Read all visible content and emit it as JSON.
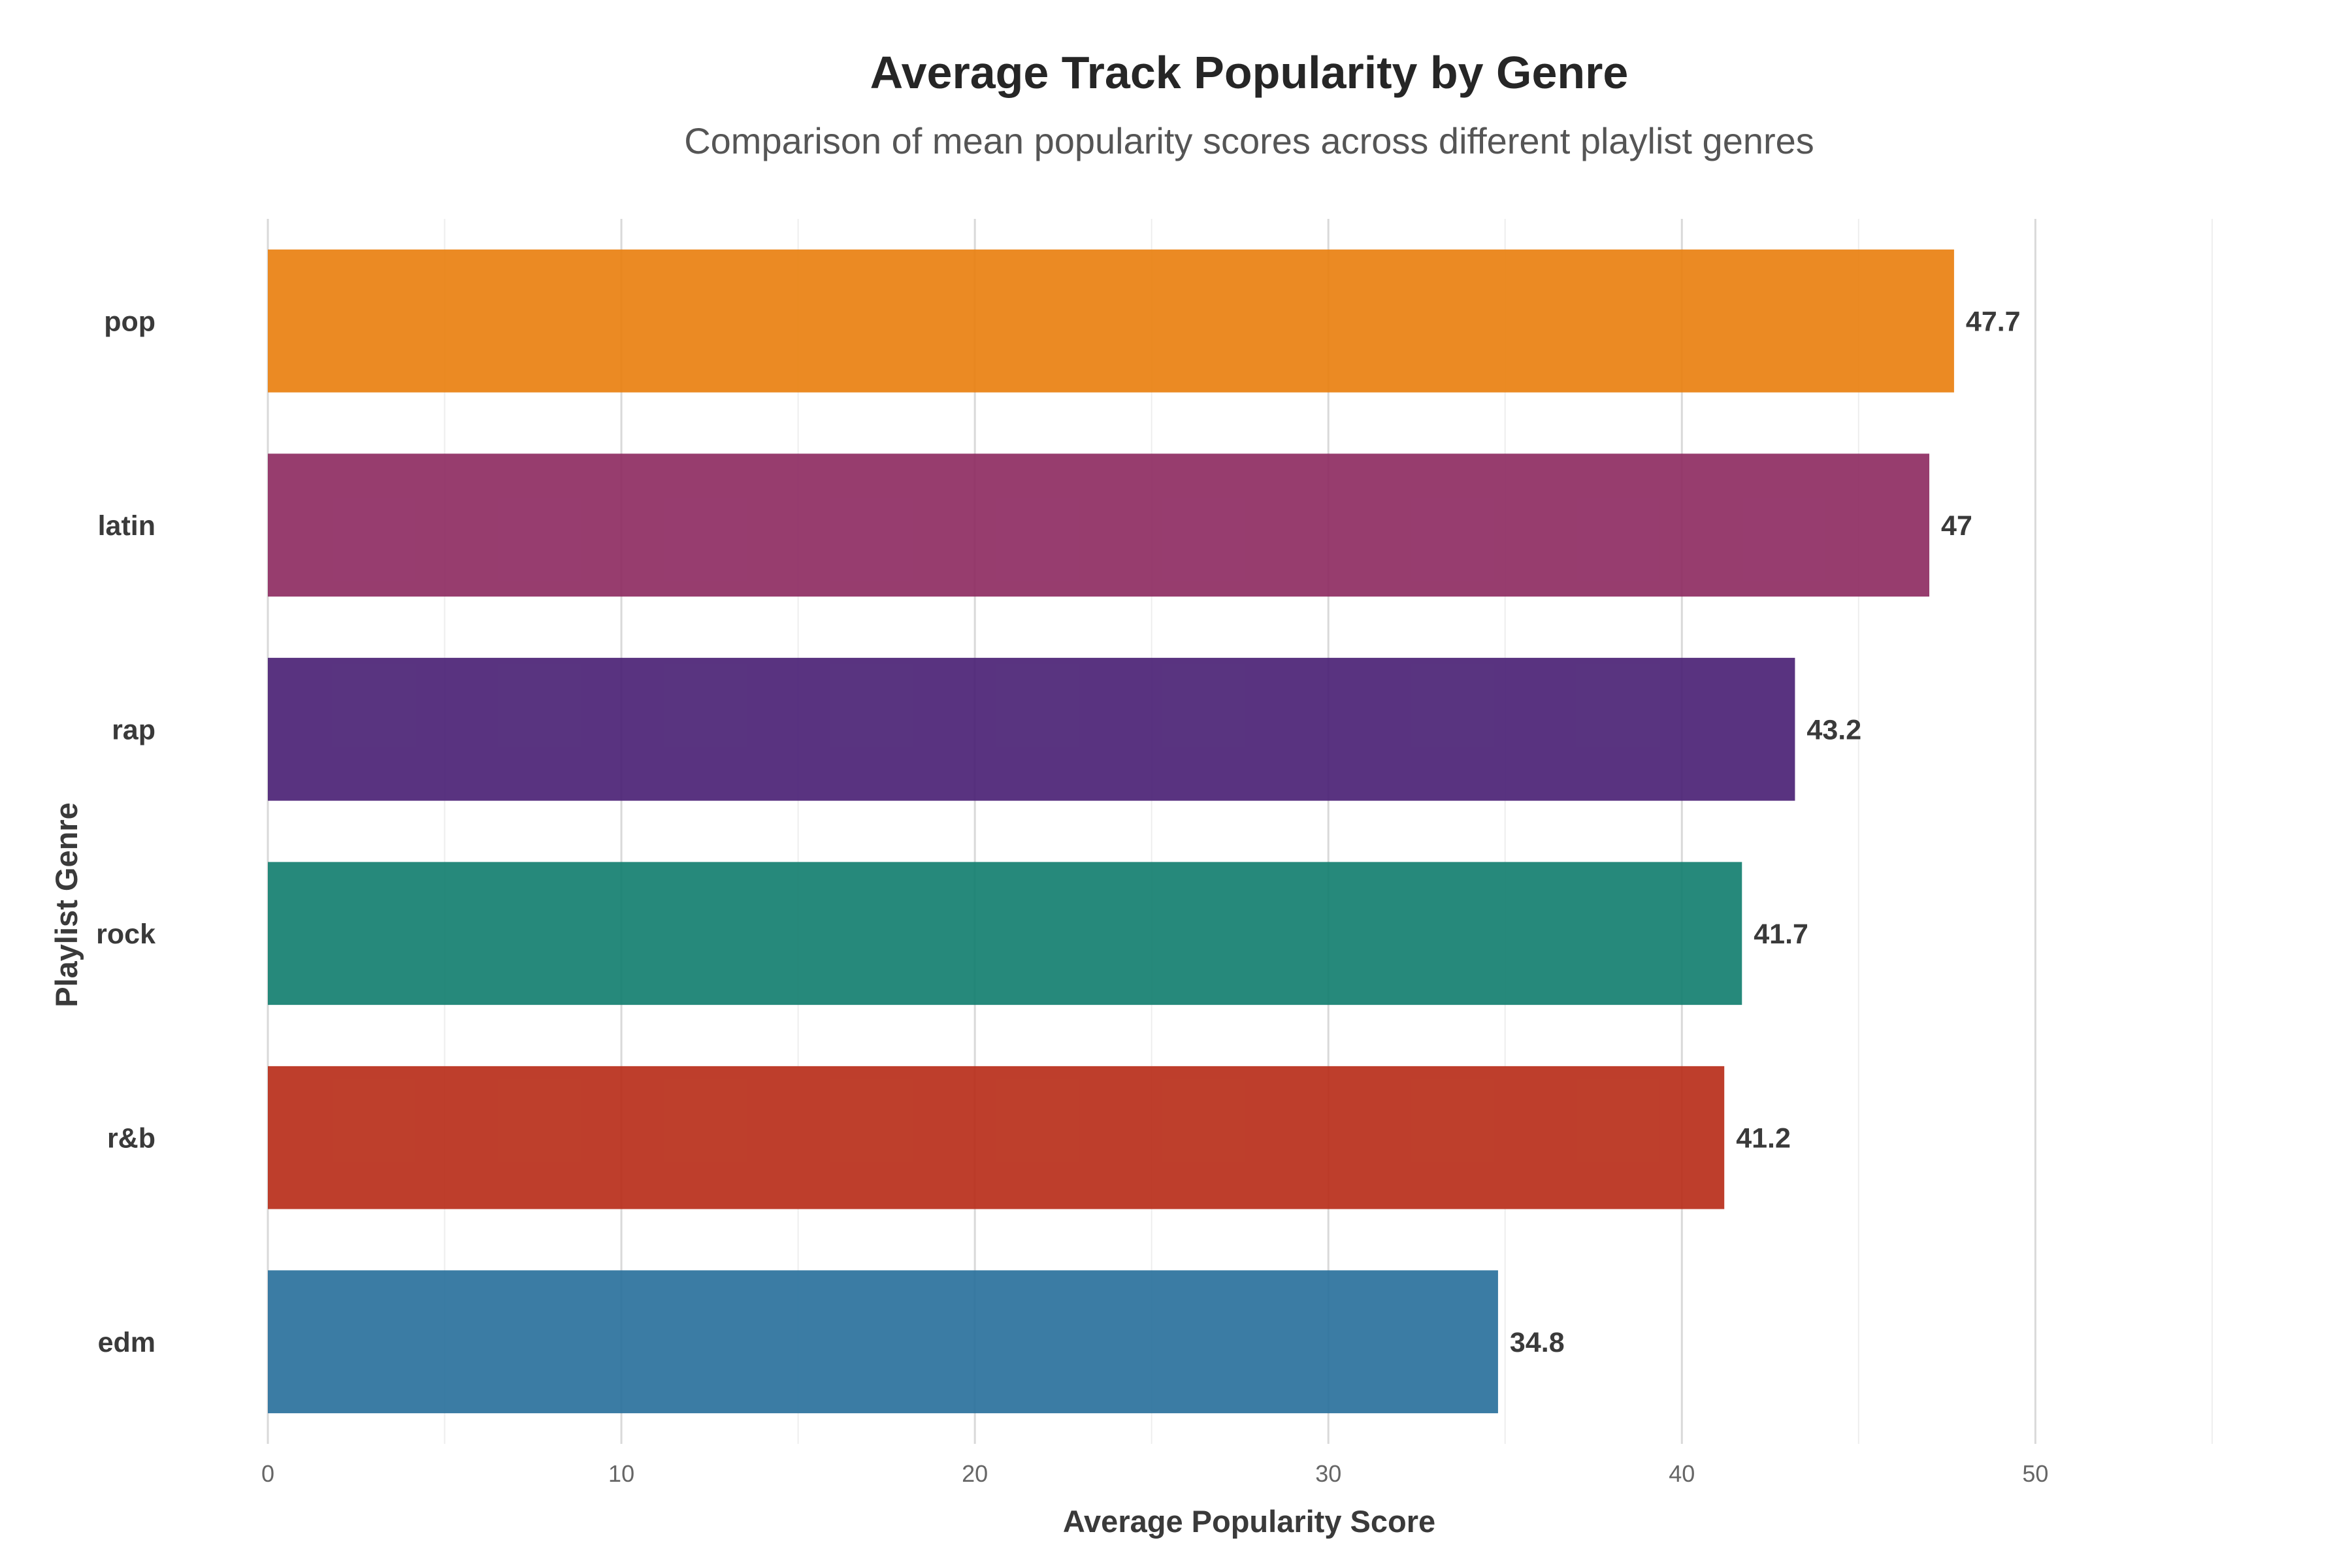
{
  "chart_data": {
    "type": "bar",
    "orientation": "horizontal",
    "title": "Average Track Popularity by Genre",
    "subtitle": "Comparison of mean popularity scores across different playlist genres",
    "xlabel": "Average Popularity Score",
    "ylabel": "Playlist Genre",
    "categories": [
      "pop",
      "latin",
      "rap",
      "rock",
      "r&b",
      "edm"
    ],
    "values": [
      47.7,
      47,
      43.2,
      41.7,
      41.2,
      34.8
    ],
    "value_labels": [
      "47.7",
      "47",
      "43.2",
      "41.7",
      "41.2",
      "34.8"
    ],
    "colors": [
      "#E98010",
      "#8E2C62",
      "#4B2275",
      "#137F70",
      "#B82E1A",
      "#2A719C"
    ],
    "xlim": [
      0,
      56
    ],
    "xticks": [
      0,
      10,
      20,
      30,
      40,
      50
    ],
    "xtick_labels": [
      "0",
      "10",
      "20",
      "30",
      "40",
      "50"
    ],
    "grid": true,
    "legend": "none"
  }
}
